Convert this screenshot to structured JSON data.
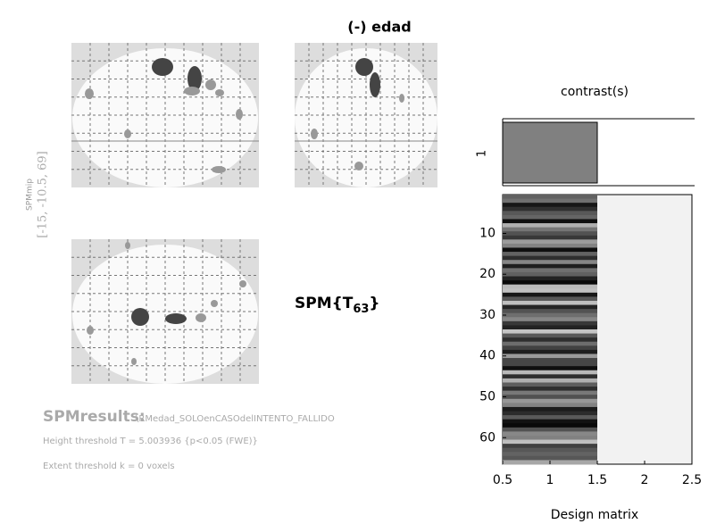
{
  "header": {
    "title": "(-) edad"
  },
  "mip": {
    "label": "SPMmip",
    "coords": "[-15, -10.5, 69]"
  },
  "statistic": {
    "main": "SPM{T",
    "subscript": "63",
    "close": "}"
  },
  "results": {
    "title": "SPMresults:",
    "path": "\\RMedad_SOLOenCASOdelINTENTO_FALLIDO",
    "height": "Height threshold T = 5.003936  {p<0.05 (FWE)}",
    "extent": "Extent threshold k = 0 voxels"
  },
  "contrast": {
    "title": "contrast(s)",
    "row_label": "1"
  },
  "design_matrix": {
    "xlabel": "Design matrix",
    "xlim": [
      0.5,
      2.5
    ],
    "xticks": [
      0.5,
      1,
      1.5,
      2,
      2.5
    ],
    "ylim": [
      0.5,
      66.5
    ],
    "yticks": [
      10,
      20,
      30,
      40,
      50,
      60
    ]
  }
}
